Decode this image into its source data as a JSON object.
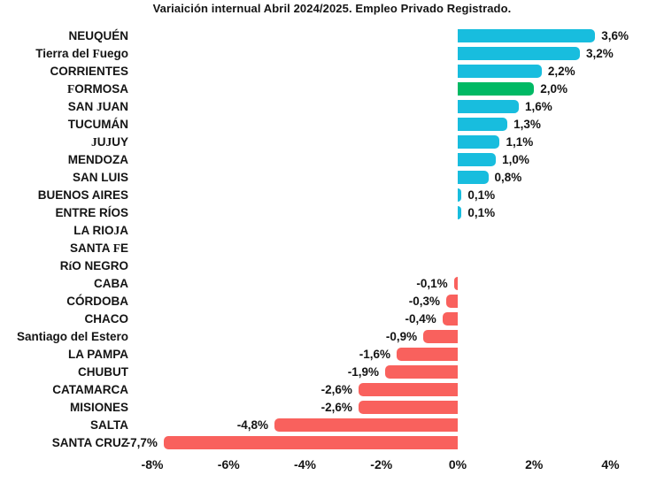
{
  "title": "Variaición internual Abril 2024/2025. Empleo Privado Registrado.",
  "colors": {
    "positive": "#18bdde",
    "negative": "#f9615d",
    "highlight": "#00b964",
    "text": "#141414"
  },
  "chart_data": {
    "type": "bar",
    "orientation": "horizontal",
    "title": "Variaición internual Abril 2024/2025. Empleo Privado Registrado.",
    "xlabel": "",
    "ylabel": "",
    "unit": "%",
    "xlim": [
      -8.5,
      5.4
    ],
    "grid": false,
    "legend": "none",
    "xticks": [
      {
        "value": -8,
        "label": "-8%"
      },
      {
        "value": -6,
        "label": "-6%"
      },
      {
        "value": -4,
        "label": "-4%"
      },
      {
        "value": -2,
        "label": "-2%"
      },
      {
        "value": 0,
        "label": "0%"
      },
      {
        "value": 2,
        "label": "2%"
      },
      {
        "value": 4,
        "label": "4%"
      }
    ],
    "bars": [
      {
        "category": "NEUQUÉN",
        "value": 3.6,
        "label": "3,6%",
        "color": "positive"
      },
      {
        "category": "Tierra del Fuego",
        "value": 3.2,
        "label": "3,2%",
        "color": "positive"
      },
      {
        "category": "CORRIENTES",
        "value": 2.2,
        "label": "2,2%",
        "color": "positive"
      },
      {
        "category": "FORMOSA",
        "value": 2.0,
        "label": "2,0%",
        "color": "highlight"
      },
      {
        "category": "SAN JUAN",
        "value": 1.6,
        "label": "1,6%",
        "color": "positive"
      },
      {
        "category": "TUCUMÁN",
        "value": 1.3,
        "label": "1,3%",
        "color": "positive"
      },
      {
        "category": "JUJUY",
        "value": 1.1,
        "label": "1,1%",
        "color": "positive"
      },
      {
        "category": "MENDOZA",
        "value": 1.0,
        "label": "1,0%",
        "color": "positive"
      },
      {
        "category": "SAN LUIS",
        "value": 0.8,
        "label": "0,8%",
        "color": "positive"
      },
      {
        "category": "BUENOS AIRES",
        "value": 0.1,
        "label": "0,1%",
        "color": "positive"
      },
      {
        "category": "ENTRE RÍOS",
        "value": 0.1,
        "label": "0,1%",
        "color": "positive"
      },
      {
        "category": "LA RIOJA",
        "value": 0,
        "label": "",
        "color": "none"
      },
      {
        "category": "SANTA FE",
        "value": 0,
        "label": "",
        "color": "none"
      },
      {
        "category": "RíO NEGRO",
        "value": 0,
        "label": "",
        "color": "none"
      },
      {
        "category": "CABA",
        "value": -0.1,
        "label": "-0,1%",
        "color": "negative"
      },
      {
        "category": "CÓRDOBA",
        "value": -0.3,
        "label": "-0,3%",
        "color": "negative"
      },
      {
        "category": "CHACO",
        "value": -0.4,
        "label": "-0,4%",
        "color": "negative"
      },
      {
        "category": "Santiago del Estero",
        "value": -0.9,
        "label": "-0,9%",
        "color": "negative"
      },
      {
        "category": "LA PAMPA",
        "value": -1.6,
        "label": "-1,6%",
        "color": "negative"
      },
      {
        "category": "CHUBUT",
        "value": -1.9,
        "label": "-1,9%",
        "color": "negative"
      },
      {
        "category": "CATAMARCA",
        "value": -2.6,
        "label": "-2,6%",
        "color": "negative"
      },
      {
        "category": "MISIONES",
        "value": -2.6,
        "label": "-2,6%",
        "color": "negative"
      },
      {
        "category": "SALTA",
        "value": -4.8,
        "label": "-4,8%",
        "color": "negative"
      },
      {
        "category": "SANTA CRUZ",
        "value": -7.7,
        "label": "-7,7%",
        "color": "negative"
      }
    ]
  }
}
